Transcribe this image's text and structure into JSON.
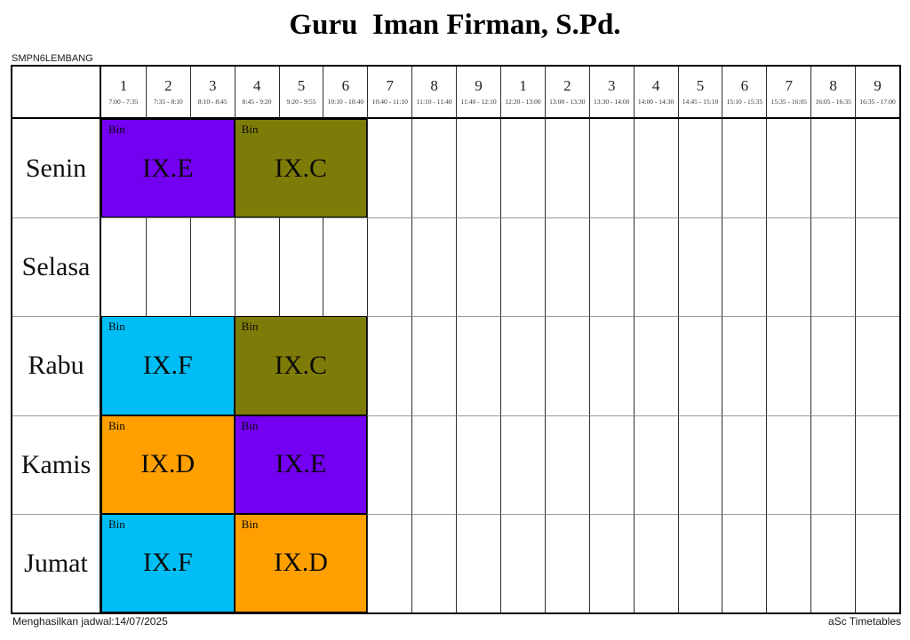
{
  "title": "Guru  Iman Firman, S.Pd.",
  "school": "SMPN6LEMBANG",
  "footer": {
    "generated": "Menghasilkan jadwal:14/07/2025",
    "app": "aSc Timetables"
  },
  "colors": {
    "purple": "#7300F0",
    "olive": "#7E7C08",
    "cyan": "#00BEF5",
    "orange": "#FFA000"
  },
  "periods": [
    {
      "num": "1",
      "time": "7:00 - 7:35"
    },
    {
      "num": "2",
      "time": "7:35 - 8:10"
    },
    {
      "num": "3",
      "time": "8:10 - 8:45"
    },
    {
      "num": "4",
      "time": "8:45 - 9:20"
    },
    {
      "num": "5",
      "time": "9:20 - 9:55"
    },
    {
      "num": "6",
      "time": "10:10 - 10:40"
    },
    {
      "num": "7",
      "time": "10:40 - 11:10"
    },
    {
      "num": "8",
      "time": "11:10 - 11:40"
    },
    {
      "num": "9",
      "time": "11:40 - 12:10"
    },
    {
      "num": "1",
      "time": "12:20 - 13:00"
    },
    {
      "num": "2",
      "time": "13:00 - 13:30"
    },
    {
      "num": "3",
      "time": "13:30 - 14:00"
    },
    {
      "num": "4",
      "time": "14:00 - 14:30"
    },
    {
      "num": "5",
      "time": "14:45 - 15:10"
    },
    {
      "num": "6",
      "time": "15:10 - 15:35"
    },
    {
      "num": "7",
      "time": "15:35 - 16:05"
    },
    {
      "num": "8",
      "time": "16:05 - 16:35"
    },
    {
      "num": "9",
      "time": "16:35 - 17:00"
    }
  ],
  "days": [
    {
      "name": "Senin",
      "lessons": [
        {
          "start": 1,
          "span": 3,
          "subject": "Bin",
          "class_name": "IX.E",
          "color": "purple"
        },
        {
          "start": 4,
          "span": 3,
          "subject": "Bin",
          "class_name": "IX.C",
          "color": "olive"
        }
      ]
    },
    {
      "name": "Selasa",
      "lessons": []
    },
    {
      "name": "Rabu",
      "lessons": [
        {
          "start": 1,
          "span": 3,
          "subject": "Bin",
          "class_name": "IX.F",
          "color": "cyan"
        },
        {
          "start": 4,
          "span": 3,
          "subject": "Bin",
          "class_name": "IX.C",
          "color": "olive"
        }
      ]
    },
    {
      "name": "Kamis",
      "lessons": [
        {
          "start": 1,
          "span": 3,
          "subject": "Bin",
          "class_name": "IX.D",
          "color": "orange"
        },
        {
          "start": 4,
          "span": 3,
          "subject": "Bin",
          "class_name": "IX.E",
          "color": "purple"
        }
      ]
    },
    {
      "name": "Jumat",
      "lessons": [
        {
          "start": 1,
          "span": 3,
          "subject": "Bin",
          "class_name": "IX.F",
          "color": "cyan"
        },
        {
          "start": 4,
          "span": 3,
          "subject": "Bin",
          "class_name": "IX.D",
          "color": "orange"
        }
      ]
    }
  ]
}
